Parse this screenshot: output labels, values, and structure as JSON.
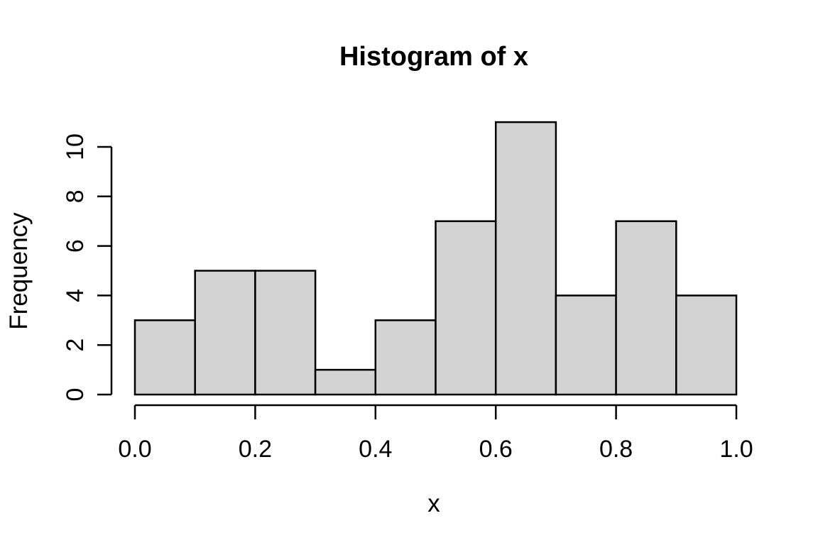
{
  "figure": {
    "background": "#ffffff"
  },
  "chart_data": {
    "type": "bar",
    "subtype": "histogram",
    "title": "Histogram of x",
    "xlabel": "x",
    "ylabel": "Frequency",
    "breaks": [
      0.0,
      0.1,
      0.2,
      0.3,
      0.4,
      0.5,
      0.6,
      0.7,
      0.8,
      0.9,
      1.0
    ],
    "counts": [
      3,
      5,
      5,
      1,
      3,
      7,
      11,
      4,
      7,
      4
    ],
    "x_ticks": [
      0.0,
      0.2,
      0.4,
      0.6,
      0.8,
      1.0
    ],
    "x_tick_labels": [
      "0.0",
      "0.2",
      "0.4",
      "0.6",
      "0.8",
      "1.0"
    ],
    "y_ticks": [
      0,
      2,
      4,
      6,
      8,
      10
    ],
    "y_tick_labels": [
      "0",
      "2",
      "4",
      "6",
      "8",
      "10"
    ],
    "xlim": [
      0.0,
      1.0
    ],
    "ylim": [
      0,
      11
    ],
    "grid": false,
    "legend": false,
    "bar_fill": "#d3d3d3",
    "bar_stroke": "#000000",
    "axis_color": "#000000",
    "text_color": "#000000"
  }
}
